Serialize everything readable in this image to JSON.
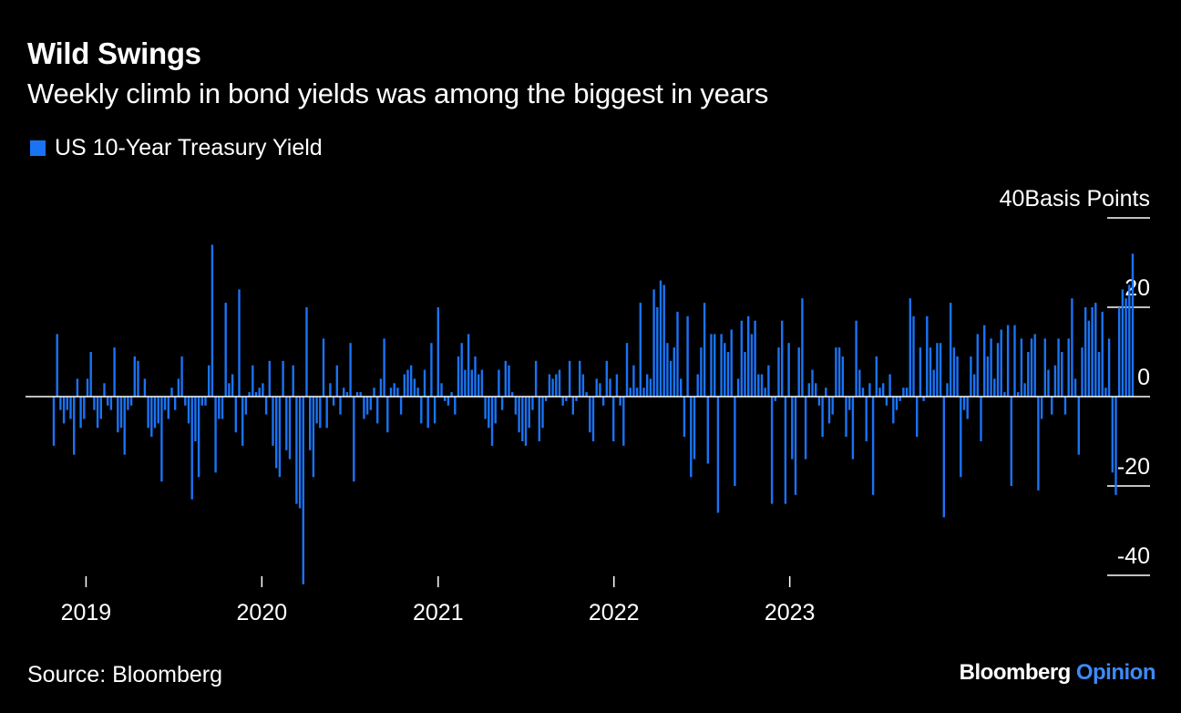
{
  "title": "Wild Swings",
  "subtitle": "Weekly climb in bond yields was among the biggest in years",
  "legend_label": "US 10-Year Treasury Yield",
  "source": "Source: Bloomberg",
  "brand": {
    "name": "Bloomberg",
    "opinion": "Opinion"
  },
  "colors": {
    "bar": "#1a73f5",
    "background": "#000000",
    "text": "#ffffff",
    "brand_accent": "#3d8af7"
  },
  "chart_data": {
    "type": "bar",
    "ylabel": "Basis Points",
    "ylim": [
      -40,
      40
    ],
    "ytick_labels": [
      "40",
      "20",
      "0",
      "-20",
      "-40"
    ],
    "yticks": [
      40,
      20,
      0,
      -20,
      -40
    ],
    "xtick_labels": [
      "2019",
      "2020",
      "2021",
      "2022",
      "2023"
    ],
    "xticks": [
      "2019-01-01",
      "2020-01-01",
      "2021-01-01",
      "2022-01-01",
      "2023-01-01"
    ],
    "x_start": "2018-10-26",
    "x_step_days": 7,
    "series": [
      {
        "name": "US 10-Year Treasury Yield",
        "values": [
          -11,
          14,
          -3,
          -6,
          -3,
          -5,
          -13,
          4,
          -7,
          -5,
          4,
          10,
          -3,
          -7,
          -5,
          3,
          -2,
          -3,
          11,
          -8,
          -7,
          -13,
          -3,
          -2,
          9,
          8,
          0,
          4,
          -7,
          -9,
          -7,
          -6,
          -19,
          -3,
          -5,
          2,
          -3,
          4,
          9,
          -2,
          -6,
          -23,
          -10,
          -18,
          -2,
          -2,
          7,
          34,
          -17,
          -5,
          -5,
          21,
          3,
          5,
          -8,
          24,
          -11,
          -4,
          1,
          7,
          1,
          2,
          3,
          -4,
          8,
          -11,
          -16,
          -18,
          8,
          -12,
          -14,
          7,
          -24,
          -25,
          -42,
          20,
          -12,
          -18,
          -6,
          -7,
          13,
          -7,
          3,
          -2,
          7,
          -4,
          2,
          1,
          12,
          -19,
          1,
          1,
          -5,
          -4,
          -3,
          2,
          -6,
          4,
          13,
          -8,
          2,
          3,
          2,
          -4,
          5,
          6,
          7,
          4,
          2,
          -6,
          6,
          -7,
          12,
          -6,
          20,
          3,
          -1,
          -2,
          1,
          -4,
          9,
          12,
          6,
          14,
          6,
          9,
          5,
          6,
          -5,
          -7,
          -11,
          -6,
          6,
          -3,
          8,
          7,
          1,
          -4,
          -8,
          -10,
          -11,
          -7,
          -3,
          8,
          -10,
          -7,
          -1,
          5,
          4,
          5,
          6,
          -2,
          -1,
          8,
          -4,
          -1,
          8,
          5,
          1,
          -8,
          -10,
          4,
          3,
          -2,
          8,
          4,
          -10,
          5,
          -2,
          -11,
          12,
          2,
          7,
          2,
          21,
          2,
          5,
          4,
          24,
          20,
          26,
          25,
          12,
          8,
          11,
          19,
          4,
          -9,
          18,
          -18,
          -14,
          5,
          11,
          21,
          -15,
          14,
          14,
          -26,
          14,
          12,
          10,
          15,
          -20,
          4,
          17,
          10,
          18,
          14,
          17,
          5,
          5,
          2,
          7,
          -24,
          -1,
          11,
          17,
          -24,
          12,
          -14,
          -22,
          11,
          22,
          -14,
          3,
          6,
          3,
          -2,
          -9,
          2,
          -6,
          -4,
          11,
          11,
          9,
          -9,
          -3,
          -14,
          17,
          6,
          2,
          -10,
          3,
          -22,
          9,
          2,
          3,
          -2,
          5,
          -6,
          -3,
          -1,
          2,
          2,
          22,
          18,
          -9,
          11,
          -1,
          18,
          11,
          6,
          12,
          12,
          -27,
          3,
          21,
          11,
          9,
          -18,
          -3,
          -5,
          9,
          5,
          14,
          -10,
          16,
          9,
          13,
          4,
          12,
          15,
          1,
          16,
          -20,
          16,
          1,
          13,
          3,
          10,
          13,
          14,
          -21,
          -5,
          13,
          6,
          -4,
          7,
          13,
          10,
          -4,
          13,
          22,
          4,
          -13,
          11,
          20,
          17,
          20,
          21,
          10,
          19,
          2,
          13,
          -17,
          -22,
          20,
          24,
          22,
          25,
          32
        ],
        "note": ""
      }
    ]
  }
}
